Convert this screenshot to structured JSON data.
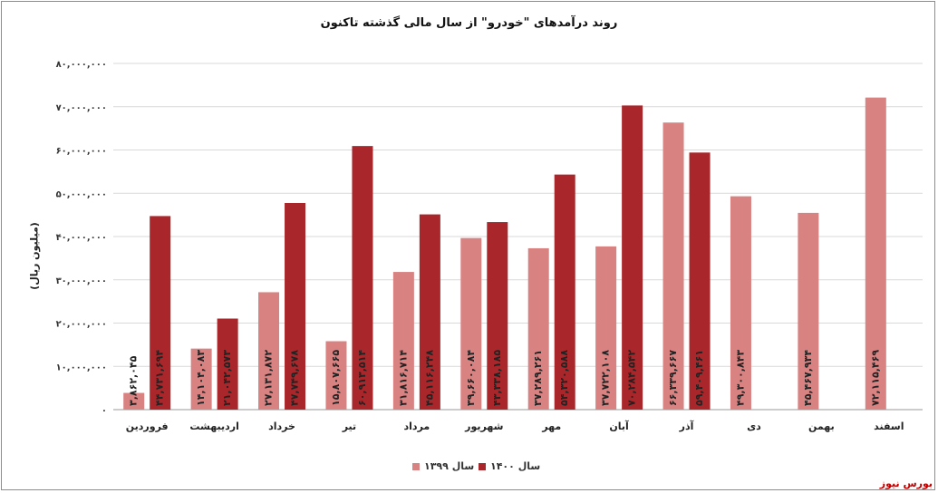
{
  "brand": "بورس نیوز",
  "chart_data": {
    "type": "bar",
    "title": "روند درآمدهای \"خودرو\" از سال مالی گذشته تاکنون",
    "ylabel": "(میلیون ریال)",
    "xlabel": "",
    "ylim": [
      0,
      80000000
    ],
    "yticks": [
      "۰",
      "۱۰,۰۰۰,۰۰۰",
      "۲۰,۰۰۰,۰۰۰",
      "۳۰,۰۰۰,۰۰۰",
      "۴۰,۰۰۰,۰۰۰",
      "۵۰,۰۰۰,۰۰۰",
      "۶۰,۰۰۰,۰۰۰",
      "۷۰,۰۰۰,۰۰۰",
      "۸۰,۰۰۰,۰۰۰"
    ],
    "ytick_values": [
      0,
      10000000,
      20000000,
      30000000,
      40000000,
      50000000,
      60000000,
      70000000,
      80000000
    ],
    "categories": [
      "فروردین",
      "اردیبهشت",
      "خرداد",
      "تیر",
      "مرداد",
      "شهریور",
      "مهر",
      "آبان",
      "آذر",
      "دی",
      "بهمن",
      "اسفند"
    ],
    "grid": true,
    "legend_position": "bottom",
    "series": [
      {
        "name": "سال ۱۳۹۹",
        "color": "#d88282",
        "values": [
          3862045,
          14104083,
          27131872,
          15807665,
          31816714,
          39660084,
          37289261,
          37722108,
          66339667,
          49300843,
          45467934,
          72115469
        ],
        "labels": [
          "۳,۸۶۲,۰۴۵",
          "۱۴,۱۰۴,۰۸۳",
          "۲۷,۱۳۱,۸۷۲",
          "۱۵,۸۰۷,۶۶۵",
          "۳۱,۸۱۶,۷۱۴",
          "۳۹,۶۶۰,۰۸۴",
          "۳۷,۲۸۹,۲۶۱",
          "۳۷,۷۲۲,۱۰۸",
          "۶۶,۳۳۹,۶۶۷",
          "۴۹,۳۰۰,۸۴۳",
          "۴۵,۴۶۷,۹۳۴",
          "۷۲,۱۱۵,۴۶۹"
        ]
      },
      {
        "name": "سال ۱۴۰۰",
        "color": "#a9272a",
        "values": [
          44731694,
          21042573,
          47749678,
          60913514,
          45116248,
          43338185,
          54320588,
          70284542,
          59409461,
          null,
          null,
          null
        ],
        "labels": [
          "۴۴,۷۳۱,۶۹۴",
          "۲۱,۰۴۲,۵۷۳",
          "۴۷,۷۴۹,۶۷۸",
          "۶۰,۹۱۳,۵۱۴",
          "۴۵,۱۱۶,۲۴۸",
          "۴۳,۳۳۸,۱۸۵",
          "۵۴,۳۲۰,۵۸۸",
          "۷۰,۲۸۴,۵۴۲",
          "۵۹,۴۰۹,۴۶۱",
          "",
          "",
          ""
        ]
      }
    ]
  }
}
